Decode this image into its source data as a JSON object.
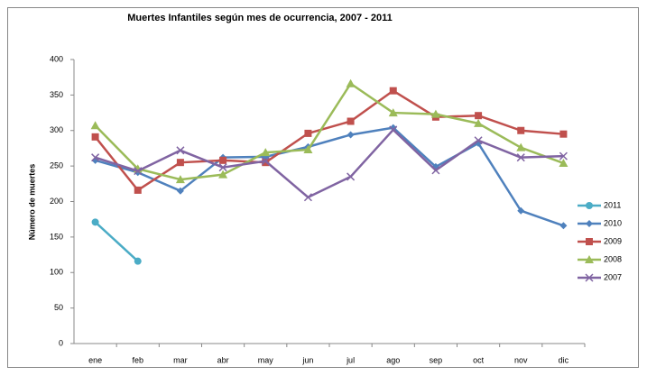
{
  "chart_data": {
    "type": "line",
    "title": "Muertes Infantiles según mes de ocurrencia, 2007 - 2011",
    "y_label": "Número de muertes",
    "categories": [
      "ene",
      "feb",
      "mar",
      "abr",
      "may",
      "jun",
      "jul",
      "ago",
      "sep",
      "oct",
      "nov",
      "dic"
    ],
    "ylim": [
      0,
      400
    ],
    "yticks": [
      0,
      50,
      100,
      150,
      200,
      250,
      300,
      350,
      400
    ],
    "grid": false,
    "legend": "right",
    "series": [
      {
        "name": "2011",
        "color": "#4bacc6",
        "marker": "circle",
        "values": [
          171,
          116,
          null,
          null,
          null,
          null,
          null,
          null,
          null,
          null,
          null,
          null
        ]
      },
      {
        "name": "2010",
        "color": "#4f81bd",
        "marker": "diamond",
        "values": [
          258,
          241,
          215,
          262,
          263,
          277,
          294,
          304,
          249,
          282,
          187,
          166
        ]
      },
      {
        "name": "2009",
        "color": "#c0504d",
        "marker": "square",
        "values": [
          291,
          216,
          255,
          258,
          255,
          296,
          313,
          356,
          319,
          321,
          300,
          295
        ]
      },
      {
        "name": "2008",
        "color": "#9bbb59",
        "marker": "triangle",
        "values": [
          307,
          246,
          231,
          238,
          269,
          273,
          366,
          325,
          323,
          310,
          276,
          254
        ]
      },
      {
        "name": "2007",
        "color": "#8064a2",
        "marker": "x",
        "values": [
          262,
          243,
          272,
          248,
          257,
          206,
          235,
          301,
          244,
          286,
          262,
          264
        ]
      }
    ]
  }
}
